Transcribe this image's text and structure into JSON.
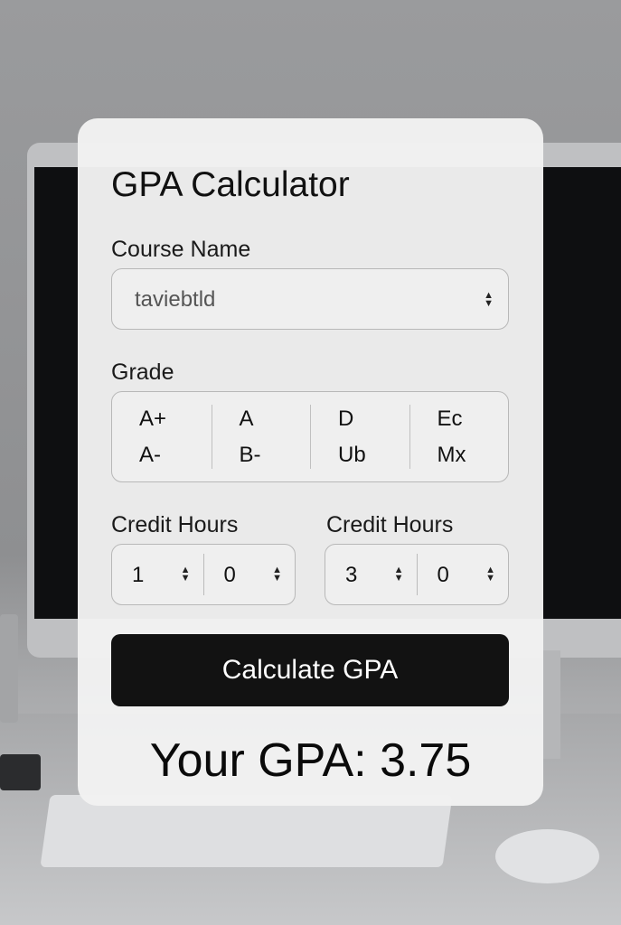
{
  "title": "GPA Calculator",
  "course": {
    "label": "Course Name",
    "value": "taviebtld"
  },
  "grade": {
    "label": "Grade",
    "columns": [
      [
        "A+",
        "A-"
      ],
      [
        "A",
        "B-"
      ],
      [
        "D",
        "Ub"
      ],
      [
        "Ec",
        "Mx"
      ]
    ]
  },
  "credits": [
    {
      "label": "Credit Hours",
      "values": [
        "1",
        "0"
      ]
    },
    {
      "label": "Credit Hours",
      "values": [
        "3",
        "0"
      ]
    }
  ],
  "button": "Calculate GPA",
  "result": "Your GPA: 3.75"
}
